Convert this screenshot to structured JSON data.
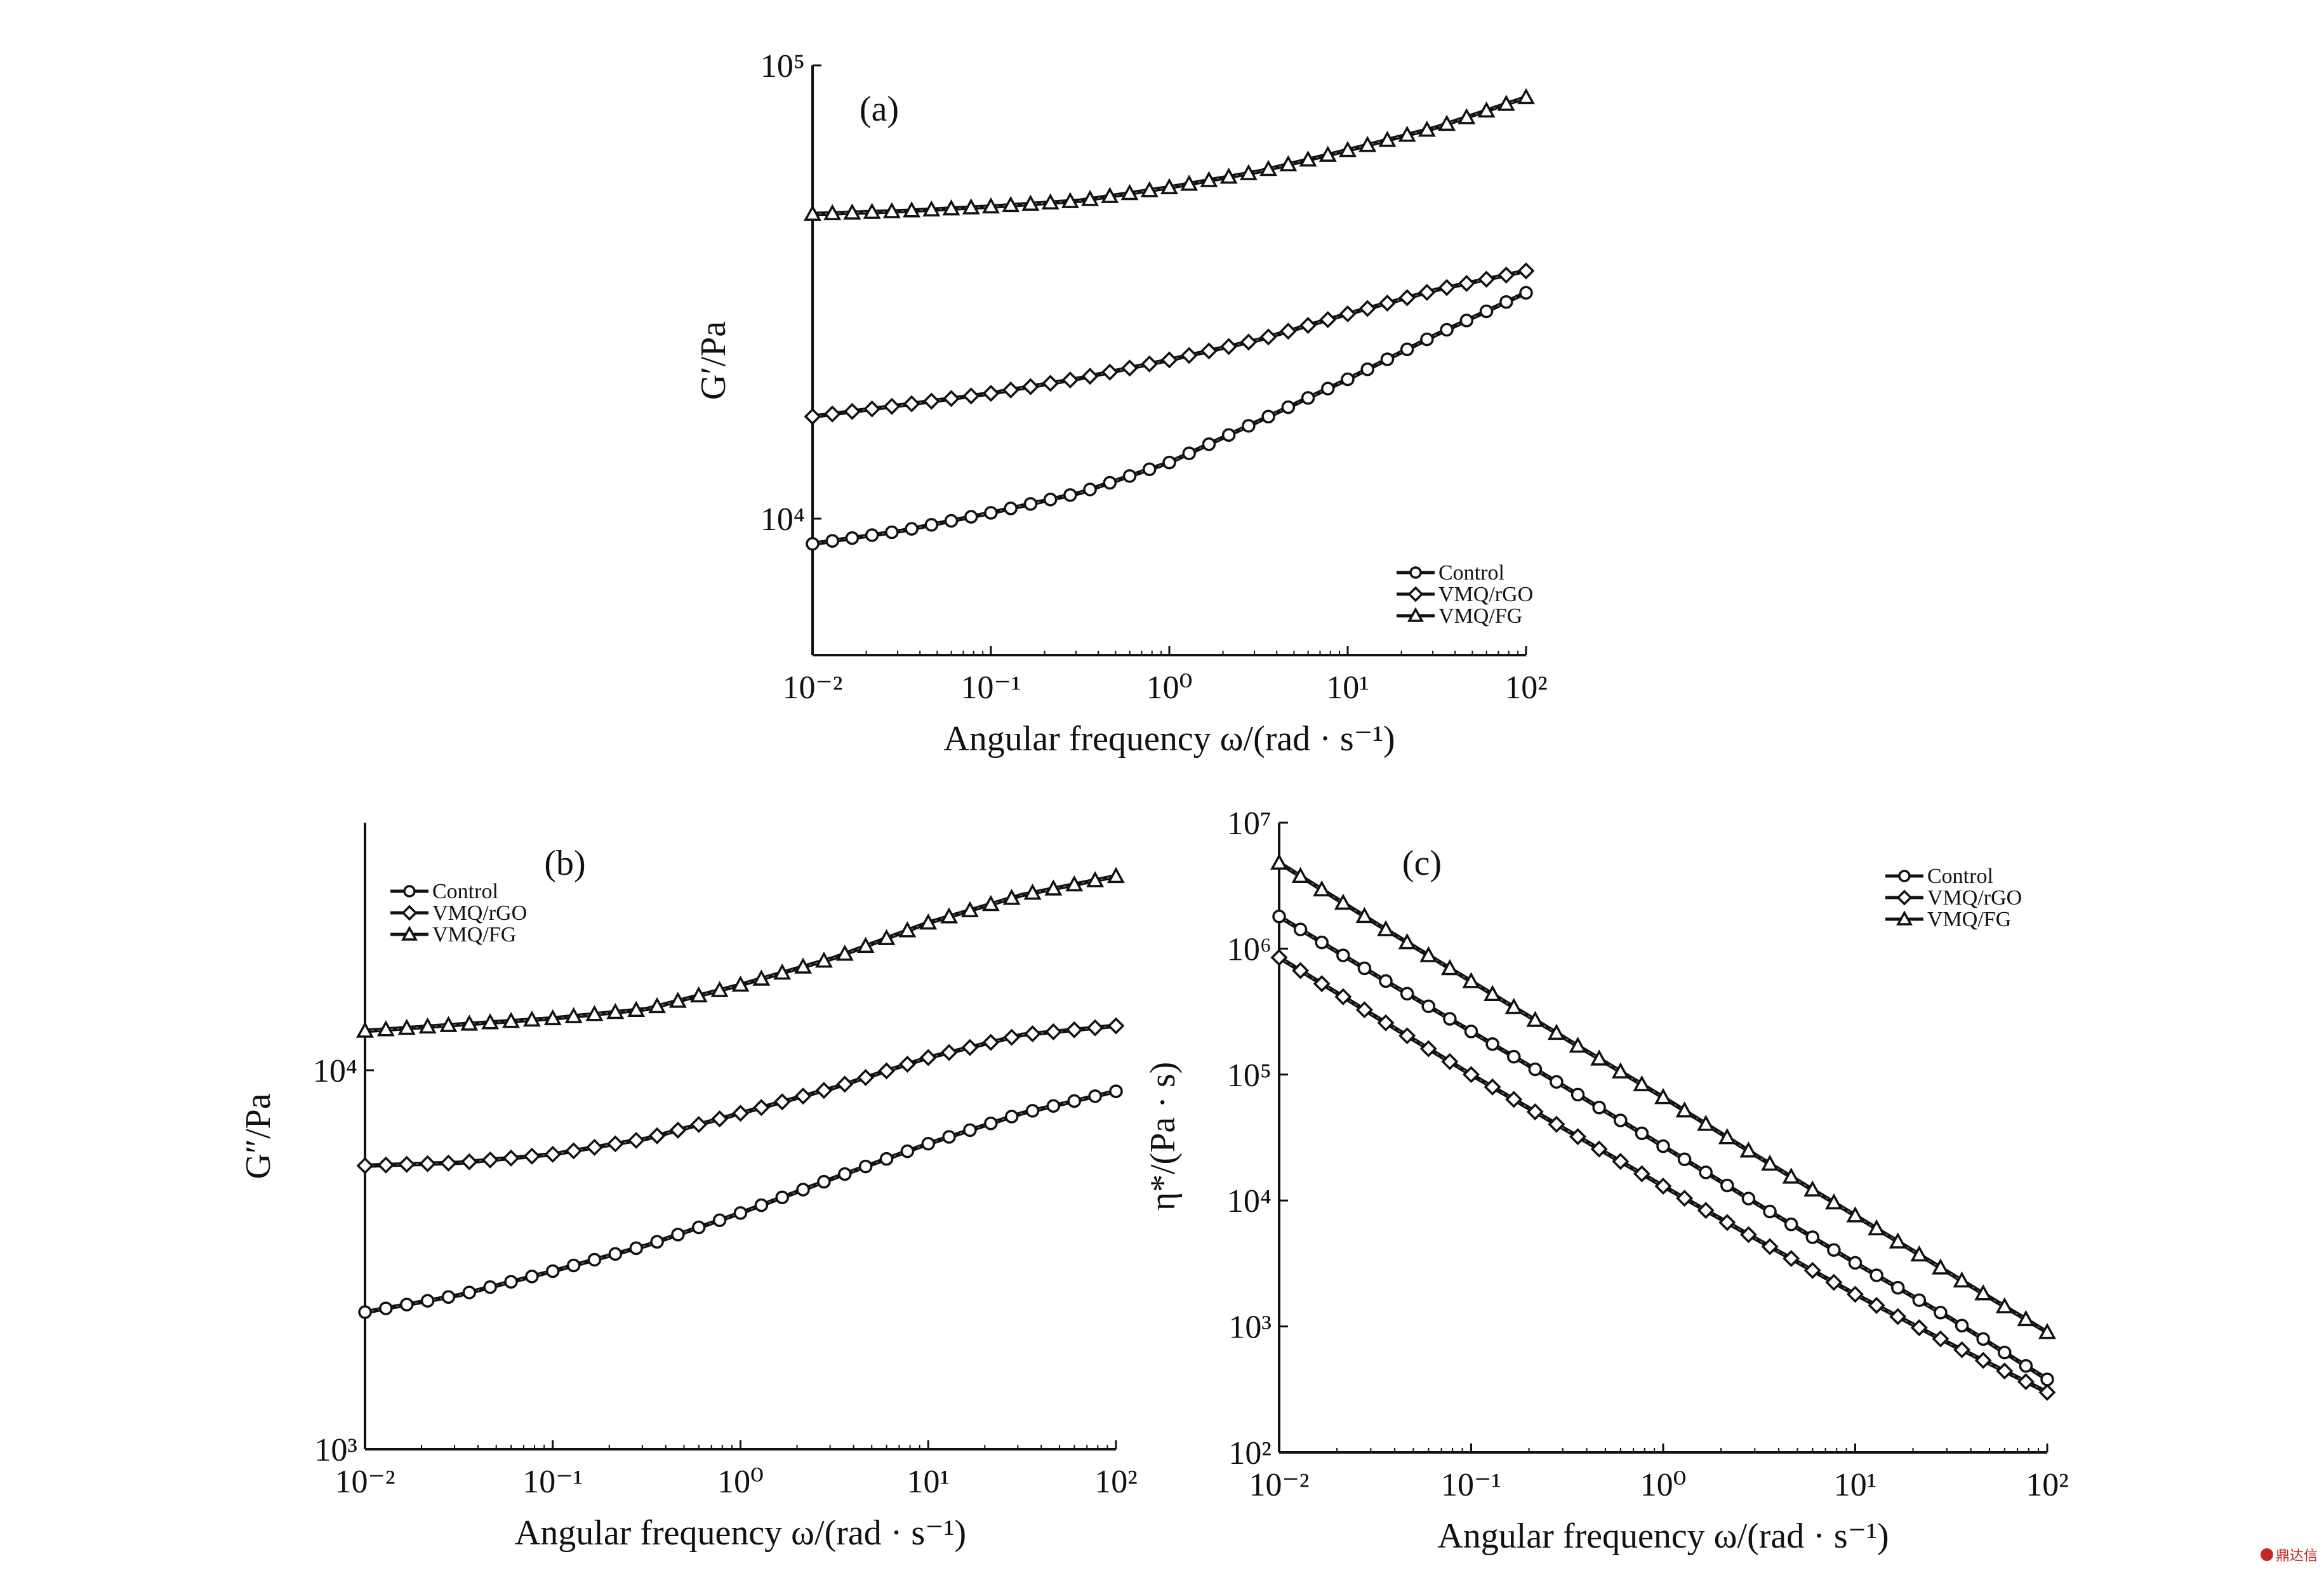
{
  "chart_data": [
    {
      "type": "line",
      "panel_label": "(a)",
      "xlabel": "Angular frequency ω/(rad · s⁻¹)",
      "ylabel": "G′/Pa",
      "xscale": "log",
      "yscale": "log",
      "xlim": [
        0.01,
        100
      ],
      "ylim": [
        5000,
        100000
      ],
      "xticks": [
        0.01,
        0.1,
        1,
        10,
        100
      ],
      "xtick_labels": [
        "10⁻²",
        "10⁻¹",
        "10⁰",
        "10¹",
        "10²"
      ],
      "yticks": [
        10000,
        100000
      ],
      "ytick_labels": [
        "10⁴",
        "10⁵"
      ],
      "grid": false,
      "legend_position": "bottom-right",
      "series": [
        {
          "name": "Control",
          "marker": "circle",
          "x": [
            0.01,
            0.0316,
            0.1,
            0.316,
            1,
            3.16,
            10,
            31.6,
            100
          ],
          "y": [
            8800,
            9400,
            10300,
            11400,
            13300,
            16400,
            20300,
            25500,
            31500
          ]
        },
        {
          "name": "VMQ/rGO",
          "marker": "diamond",
          "x": [
            0.01,
            0.0316,
            0.1,
            0.316,
            1,
            3.16,
            10,
            31.6,
            100
          ],
          "y": [
            16800,
            17800,
            18900,
            20400,
            22400,
            24800,
            28300,
            32000,
            35200
          ]
        },
        {
          "name": "VMQ/FG",
          "marker": "triangle",
          "x": [
            0.01,
            0.0316,
            0.1,
            0.316,
            1,
            3.16,
            10,
            31.6,
            100
          ],
          "y": [
            47000,
            47700,
            48800,
            50300,
            53800,
            58300,
            65000,
            73000,
            85000
          ]
        }
      ]
    },
    {
      "type": "line",
      "panel_label": "(b)",
      "xlabel": "Angular frequency ω/(rad · s⁻¹)",
      "ylabel": "G″/Pa",
      "xscale": "log",
      "yscale": "log",
      "xlim": [
        0.01,
        100
      ],
      "ylim": [
        1000,
        45000
      ],
      "xticks": [
        0.01,
        0.1,
        1,
        10,
        100
      ],
      "xtick_labels": [
        "10⁻²",
        "10⁻¹",
        "10⁰",
        "10¹",
        "10²"
      ],
      "yticks": [
        1000,
        10000
      ],
      "ytick_labels": [
        "10³",
        "10⁴"
      ],
      "grid": false,
      "legend_position": "top-left",
      "series": [
        {
          "name": "Control",
          "marker": "circle",
          "x": [
            0.01,
            0.0316,
            0.1,
            0.316,
            1,
            3.16,
            10,
            31.6,
            100
          ],
          "y": [
            2300,
            2550,
            2950,
            3450,
            4200,
            5200,
            6400,
            7700,
            8800
          ]
        },
        {
          "name": "VMQ/rGO",
          "marker": "diamond",
          "x": [
            0.01,
            0.0316,
            0.1,
            0.316,
            1,
            3.16,
            10,
            31.6,
            100
          ],
          "y": [
            5600,
            5700,
            6000,
            6600,
            7700,
            9000,
            10800,
            12400,
            13100
          ]
        },
        {
          "name": "VMQ/FG",
          "marker": "triangle",
          "x": [
            0.01,
            0.0316,
            0.1,
            0.316,
            1,
            3.16,
            10,
            31.6,
            100
          ],
          "y": [
            12700,
            13200,
            13700,
            14500,
            16800,
            19800,
            24500,
            29000,
            32500
          ]
        }
      ]
    },
    {
      "type": "line",
      "panel_label": "(c)",
      "xlabel": "Angular frequency ω/(rad · s⁻¹)",
      "ylabel": "η*/(Pa · s)",
      "xscale": "log",
      "yscale": "log",
      "xlim": [
        0.01,
        100
      ],
      "ylim": [
        100,
        10000000
      ],
      "xticks": [
        0.01,
        0.1,
        1,
        10,
        100
      ],
      "xtick_labels": [
        "10⁻²",
        "10⁻¹",
        "10⁰",
        "10¹",
        "10²"
      ],
      "yticks": [
        100,
        1000,
        10000,
        100000,
        1000000,
        10000000
      ],
      "ytick_labels": [
        "10²",
        "10³",
        "10⁴",
        "10⁵",
        "10⁶",
        "10⁷"
      ],
      "grid": false,
      "legend_position": "top-right",
      "series": [
        {
          "name": "Control",
          "marker": "circle",
          "x": [
            0.01,
            0.0316,
            0.1,
            0.316,
            1,
            3.16,
            10,
            31.6,
            100
          ],
          "y": [
            1800000,
            620000,
            220000,
            78000,
            27000,
            9200,
            3200,
            1150,
            380
          ]
        },
        {
          "name": "VMQ/rGO",
          "marker": "diamond",
          "x": [
            0.01,
            0.0316,
            0.1,
            0.316,
            1,
            3.16,
            10,
            31.6,
            100
          ],
          "y": [
            850000,
            290000,
            100000,
            36000,
            13000,
            4800,
            1800,
            720,
            300
          ]
        },
        {
          "name": "VMQ/FG",
          "marker": "triangle",
          "x": [
            0.01,
            0.0316,
            0.1,
            0.316,
            1,
            3.16,
            10,
            31.6,
            100
          ],
          "y": [
            4800000,
            1600000,
            550000,
            190000,
            66000,
            22000,
            7600,
            2600,
            900
          ]
        }
      ]
    }
  ],
  "watermark": "鼎达信"
}
